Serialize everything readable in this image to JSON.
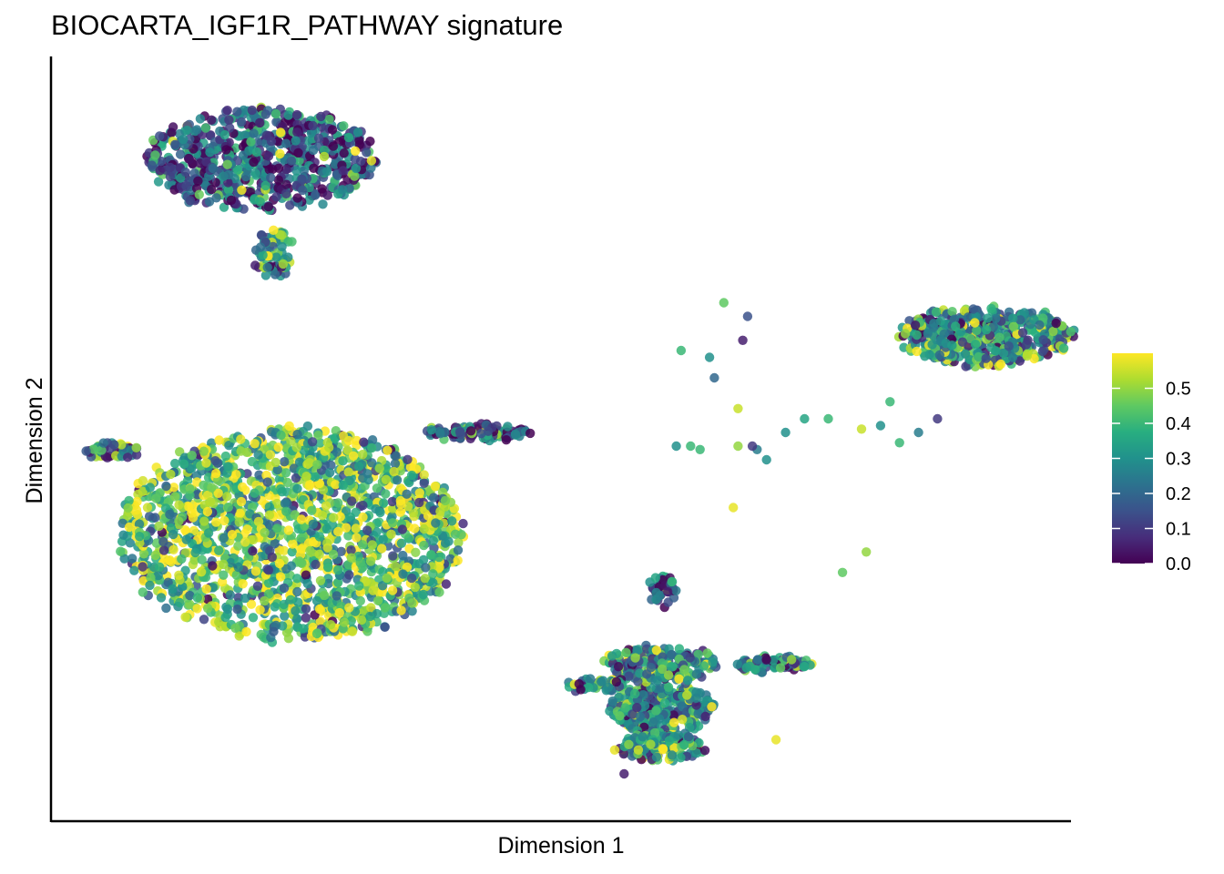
{
  "chart_data": {
    "type": "scatter",
    "title": "BIOCARTA_IGF1R_PATHWAY signature",
    "xlabel": "Dimension 1",
    "ylabel": "Dimension 2",
    "x_ticks_shown": false,
    "y_ticks_shown": false,
    "grid": false,
    "legend": {
      "type": "colorbar",
      "placement": "right",
      "title": "",
      "ticks": [
        "0.0",
        "0.1",
        "0.2",
        "0.3",
        "0.4",
        "0.5"
      ],
      "range": [
        0.0,
        0.6
      ],
      "palette": [
        "#440154",
        "#472d7b",
        "#3b528b",
        "#2c728e",
        "#21918c",
        "#28ae80",
        "#5ec962",
        "#addc30",
        "#fde725"
      ]
    },
    "clusters": [
      {
        "center": [
          2.1,
          8.6
        ],
        "spread": [
          1.2,
          0.75
        ],
        "count": 700,
        "mean_value": 0.15
      },
      {
        "center": [
          2.2,
          7.2
        ],
        "spread": [
          0.2,
          0.35
        ],
        "count": 70,
        "mean_value": 0.3
      },
      {
        "center": [
          2.4,
          3.1
        ],
        "spread": [
          1.8,
          1.55
        ],
        "count": 1800,
        "mean_value": 0.42
      },
      {
        "center": [
          0.5,
          4.35
        ],
        "spread": [
          0.3,
          0.12
        ],
        "count": 50,
        "mean_value": 0.25
      },
      {
        "center": [
          4.4,
          4.6
        ],
        "spread": [
          0.6,
          0.08
        ],
        "count": 110,
        "mean_value": 0.22
      },
      {
        "center": [
          9.7,
          6.0
        ],
        "spread": [
          0.9,
          0.42
        ],
        "count": 520,
        "mean_value": 0.3
      },
      {
        "center": [
          6.3,
          2.3
        ],
        "spread": [
          0.13,
          0.2
        ],
        "count": 50,
        "mean_value": 0.15
      },
      {
        "center": [
          6.3,
          0.55
        ],
        "spread": [
          0.55,
          0.33
        ],
        "count": 280,
        "mean_value": 0.3
      },
      {
        "center": [
          6.3,
          1.2
        ],
        "spread": [
          0.6,
          0.25
        ],
        "count": 200,
        "mean_value": 0.3
      },
      {
        "center": [
          5.6,
          0.9
        ],
        "spread": [
          0.28,
          0.08
        ],
        "count": 60,
        "mean_value": 0.3
      },
      {
        "center": [
          7.5,
          1.2
        ],
        "spread": [
          0.4,
          0.09
        ],
        "count": 90,
        "mean_value": 0.25
      },
      {
        "center": [
          6.3,
          0.0
        ],
        "spread": [
          0.45,
          0.22
        ],
        "count": 150,
        "mean_value": 0.3
      }
    ],
    "outliers": [
      [
        6.8,
        5.7,
        0.3
      ],
      [
        7.15,
        5.95,
        0.05
      ],
      [
        6.5,
        5.8,
        0.4
      ],
      [
        6.95,
        6.5,
        0.45
      ],
      [
        7.2,
        6.3,
        0.15
      ],
      [
        6.85,
        5.4,
        0.2
      ],
      [
        7.1,
        4.95,
        0.55
      ],
      [
        7.4,
        4.2,
        0.3
      ],
      [
        7.6,
        4.6,
        0.3
      ],
      [
        7.8,
        4.8,
        0.35
      ],
      [
        8.05,
        4.8,
        0.4
      ],
      [
        8.4,
        4.65,
        0.55
      ],
      [
        8.6,
        4.7,
        0.3
      ],
      [
        8.8,
        4.45,
        0.4
      ],
      [
        9.0,
        4.6,
        0.25
      ],
      [
        9.2,
        4.8,
        0.1
      ],
      [
        8.7,
        5.05,
        0.4
      ],
      [
        7.1,
        4.4,
        0.5
      ],
      [
        6.6,
        4.4,
        0.4
      ],
      [
        7.05,
        3.5,
        0.58
      ],
      [
        8.45,
        2.85,
        0.5
      ],
      [
        8.2,
        2.55,
        0.45
      ],
      [
        7.5,
        0.1,
        0.58
      ],
      [
        5.9,
        -0.4,
        0.05
      ],
      [
        5.8,
        -0.05,
        0.58
      ],
      [
        6.05,
        -0.05,
        0.55
      ],
      [
        7.3,
        4.35,
        0.25
      ],
      [
        7.25,
        4.4,
        0.1
      ],
      [
        6.45,
        4.4,
        0.3
      ],
      [
        6.7,
        4.35,
        0.4
      ]
    ],
    "x_range": [
      0,
      10.5
    ],
    "y_range": [
      -1,
      10
    ]
  }
}
